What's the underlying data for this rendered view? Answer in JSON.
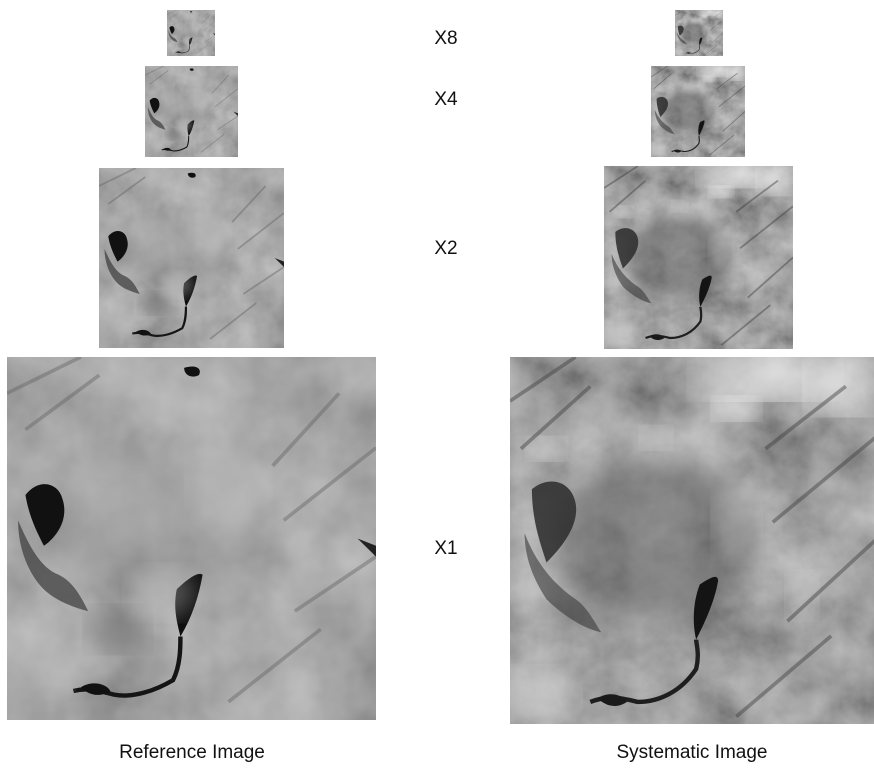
{
  "scale_labels": {
    "x8": "X8",
    "x4": "X4",
    "x2": "X2",
    "x1": "X1"
  },
  "captions": {
    "reference": "Reference Image",
    "systematic": "Systematic Image"
  },
  "colors": {
    "reference_base": "#8f8f8f",
    "systematic_base": "#7b7b7b",
    "water": "#111111",
    "cloud": "#f4f4f4"
  }
}
